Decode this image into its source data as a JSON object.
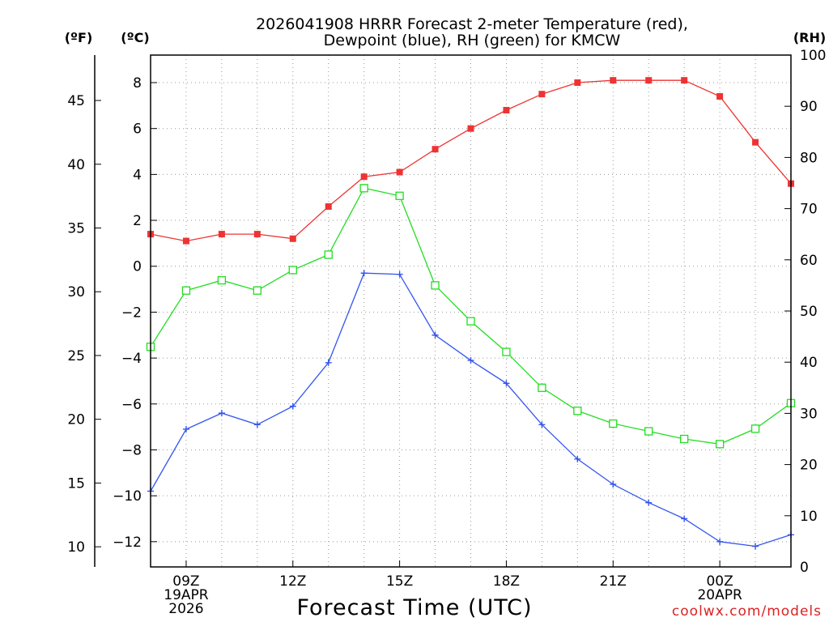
{
  "chart_data": {
    "type": "line",
    "title": "2026041908 HRRR Forecast 2-meter Temperature (red), Dewpoint (blue), RH (green) for KMCW",
    "title_lines": [
      "2026041908 HRRR Forecast 2-meter Temperature (red),",
      "Dewpoint (blue), RH (green) for KMCW"
    ],
    "xlabel": "Forecast Time (UTC)",
    "credit": "coolwx.com/models",
    "units": {
      "fahrenheit": "(ºF)",
      "celsius": "(ºC)",
      "rh": "(RH)"
    },
    "x": [
      8,
      9,
      10,
      11,
      12,
      13,
      14,
      15,
      16,
      17,
      18,
      19,
      20,
      21,
      22,
      23,
      24,
      25,
      26
    ],
    "xlim": [
      8,
      26
    ],
    "x_ticks": [
      {
        "x": 9,
        "lines": [
          "09Z",
          "19APR",
          "2026"
        ]
      },
      {
        "x": 12,
        "lines": [
          "12Z"
        ]
      },
      {
        "x": 15,
        "lines": [
          "15Z"
        ]
      },
      {
        "x": 18,
        "lines": [
          "18Z"
        ]
      },
      {
        "x": 21,
        "lines": [
          "21Z"
        ]
      },
      {
        "x": 24,
        "lines": [
          "00Z",
          "20APR"
        ]
      }
    ],
    "celsius_axis": {
      "ylim": [
        -13.1,
        9.2
      ],
      "ticks": [
        "8",
        "6",
        "4",
        "2",
        "0",
        "−2",
        "−4",
        "−6",
        "−8",
        "−10",
        "−12"
      ],
      "tick_values": [
        8,
        6,
        4,
        2,
        0,
        -2,
        -4,
        -6,
        -8,
        -10,
        -12
      ]
    },
    "fahrenheit_axis": {
      "ticks": [
        "45",
        "40",
        "35",
        "30",
        "25",
        "20",
        "15",
        "10"
      ],
      "tick_values": [
        45,
        40,
        35,
        30,
        25,
        20,
        15,
        10
      ]
    },
    "rh_axis": {
      "ylim": [
        0,
        100
      ],
      "ticks": [
        "100",
        "90",
        "80",
        "70",
        "60",
        "50",
        "40",
        "30",
        "20",
        "10",
        "0"
      ],
      "tick_values": [
        100,
        90,
        80,
        70,
        60,
        50,
        40,
        30,
        20,
        10,
        0
      ]
    },
    "series": [
      {
        "name": "Temperature",
        "axis": "celsius",
        "color": "#ee3333",
        "marker": "filled-square",
        "values": [
          1.4,
          1.1,
          1.4,
          1.4,
          1.2,
          2.6,
          3.9,
          4.1,
          5.1,
          6.0,
          6.8,
          7.5,
          8.0,
          8.1,
          8.1,
          8.1,
          7.4,
          5.4,
          3.6
        ]
      },
      {
        "name": "Dewpoint",
        "axis": "celsius",
        "color": "#3355ee",
        "marker": "plus",
        "values": [
          -9.8,
          -7.1,
          -6.4,
          -6.9,
          -6.1,
          -4.2,
          -0.3,
          -0.35,
          -3.0,
          -4.1,
          -5.1,
          -6.9,
          -8.4,
          -9.5,
          -10.3,
          -11.0,
          -12.0,
          -12.2,
          -11.7
        ]
      },
      {
        "name": "RH",
        "axis": "rh",
        "color": "#22dd22",
        "marker": "open-square",
        "values": [
          43,
          54,
          56,
          54,
          58,
          61,
          74,
          72.5,
          55,
          48,
          42,
          35,
          30.5,
          28,
          26.5,
          25,
          24,
          27,
          32
        ]
      }
    ],
    "grid": true
  }
}
